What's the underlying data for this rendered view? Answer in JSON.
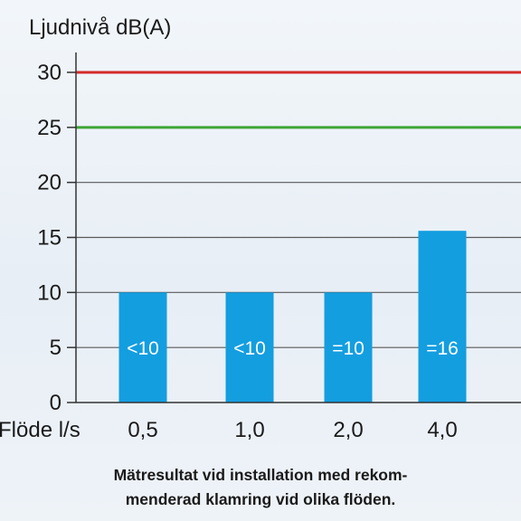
{
  "chart_data": {
    "type": "bar",
    "ylabel": "Ljudnivå dB(A)",
    "xlabel": "Flöde l/s",
    "categories": [
      "0,5",
      "1,0",
      "2,0",
      "4,0"
    ],
    "values": [
      10,
      10,
      10,
      15.6
    ],
    "bar_labels": [
      "<10",
      "<10",
      "=10",
      "=16"
    ],
    "ylim": [
      0,
      30
    ],
    "yticks": [
      0,
      5,
      10,
      15,
      20,
      25,
      30
    ],
    "grid": true,
    "reference_lines": [
      {
        "y": 30,
        "color": "#d42a2a"
      },
      {
        "y": 25,
        "color": "#3da535"
      }
    ],
    "bar_color": "#139ee0"
  },
  "caption": {
    "line1": "Mätresultat vid installation med rekom-",
    "line2": "menderad klamring vid olika flöden."
  }
}
